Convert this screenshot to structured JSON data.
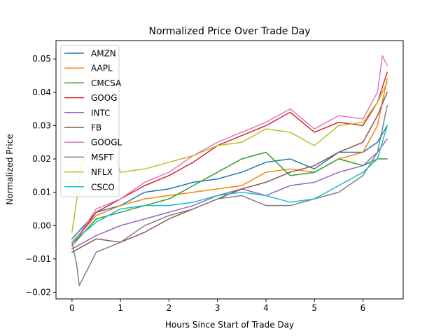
{
  "chart_data": {
    "type": "line",
    "title": "Normalized Price Over Trade Day",
    "xlabel": "Hours Since Start of Trade Day",
    "ylabel": "Normalized Price",
    "xlim": [
      -0.33,
      6.83
    ],
    "ylim": [
      -0.022,
      0.0555
    ],
    "xticks": [
      0,
      1,
      2,
      3,
      4,
      5,
      6
    ],
    "xtick_labels": [
      "0",
      "1",
      "2",
      "3",
      "4",
      "5",
      "6"
    ],
    "yticks": [
      -0.02,
      -0.01,
      0.0,
      0.01,
      0.02,
      0.03,
      0.04,
      0.05
    ],
    "ytick_labels": [
      "−0.02",
      "−0.01",
      "0.00",
      "0.01",
      "0.02",
      "0.03",
      "0.04",
      "0.05"
    ],
    "grid": false,
    "legend_position": "top-left",
    "series": [
      {
        "name": "AMZN",
        "color": "#1f77b4",
        "x": [
          0,
          0.5,
          1,
          1.5,
          2,
          2.5,
          3,
          3.5,
          4,
          4.5,
          5,
          5.5,
          6,
          6.3,
          6.5
        ],
        "y": [
          -0.004,
          0.004,
          0.006,
          0.01,
          0.011,
          0.013,
          0.014,
          0.016,
          0.019,
          0.02,
          0.017,
          0.022,
          0.022,
          0.025,
          0.03
        ]
      },
      {
        "name": "AAPL",
        "color": "#ff7f0e",
        "x": [
          0,
          0.5,
          1,
          1.5,
          2,
          2.5,
          3,
          3.5,
          4,
          4.5,
          5,
          5.5,
          6,
          6.3,
          6.5
        ],
        "y": [
          -0.005,
          0.003,
          0.006,
          0.008,
          0.009,
          0.01,
          0.011,
          0.012,
          0.016,
          0.017,
          0.016,
          0.02,
          0.022,
          0.03,
          0.044
        ]
      },
      {
        "name": "CMCSA",
        "color": "#2ca02c",
        "x": [
          0,
          0.5,
          1,
          1.5,
          2,
          2.5,
          3,
          3.5,
          4,
          4.5,
          5,
          5.5,
          6,
          6.3,
          6.5
        ],
        "y": [
          -0.006,
          0.002,
          0.004,
          0.006,
          0.008,
          0.012,
          0.016,
          0.02,
          0.022,
          0.015,
          0.016,
          0.02,
          0.018,
          0.02,
          0.02
        ]
      },
      {
        "name": "GOOG",
        "color": "#d62728",
        "x": [
          0,
          0.5,
          1,
          1.5,
          2,
          2.5,
          3,
          3.5,
          4,
          4.5,
          5,
          5.5,
          6,
          6.3,
          6.5
        ],
        "y": [
          -0.006,
          0.004,
          0.008,
          0.012,
          0.015,
          0.019,
          0.024,
          0.027,
          0.03,
          0.034,
          0.028,
          0.031,
          0.03,
          0.037,
          0.046
        ]
      },
      {
        "name": "INTC",
        "color": "#9467bd",
        "x": [
          0,
          0.5,
          1,
          1.5,
          2,
          2.5,
          3,
          3.5,
          4,
          4.5,
          5,
          5.5,
          6,
          6.3,
          6.5
        ],
        "y": [
          -0.007,
          -0.003,
          0.0,
          0.002,
          0.004,
          0.006,
          0.009,
          0.011,
          0.009,
          0.012,
          0.013,
          0.016,
          0.018,
          0.022,
          0.026
        ]
      },
      {
        "name": "FB",
        "color": "#8c564b",
        "x": [
          0,
          0.5,
          1,
          1.5,
          2,
          2.5,
          3,
          3.5,
          4,
          4.5,
          5,
          5.5,
          6,
          6.3,
          6.5
        ],
        "y": [
          -0.008,
          -0.004,
          -0.005,
          -0.002,
          0.002,
          0.005,
          0.008,
          0.011,
          0.013,
          0.016,
          0.018,
          0.022,
          0.025,
          0.033,
          0.04
        ]
      },
      {
        "name": "GOOGL",
        "color": "#e377c2",
        "x": [
          0,
          0.5,
          1,
          1.5,
          2,
          2.5,
          3,
          3.5,
          4,
          4.5,
          5,
          5.5,
          6,
          6.3,
          6.4,
          6.5
        ],
        "y": [
          -0.006,
          0.005,
          0.008,
          0.013,
          0.016,
          0.021,
          0.025,
          0.028,
          0.031,
          0.035,
          0.029,
          0.033,
          0.032,
          0.04,
          0.051,
          0.048
        ]
      },
      {
        "name": "MSFT",
        "color": "#7f7f7f",
        "x": [
          0,
          0.1,
          0.15,
          0.5,
          1,
          1.5,
          2,
          2.5,
          3,
          3.5,
          4,
          4.5,
          5,
          5.5,
          6,
          6.3,
          6.5
        ],
        "y": [
          -0.005,
          -0.012,
          -0.018,
          -0.008,
          -0.005,
          0.0,
          0.003,
          0.005,
          0.008,
          0.009,
          0.006,
          0.006,
          0.008,
          0.01,
          0.015,
          0.022,
          0.036
        ]
      },
      {
        "name": "NFLX",
        "color": "#bcbd22",
        "x": [
          0,
          0.2,
          0.4,
          0.6,
          0.8,
          1,
          1.5,
          2,
          2.5,
          3,
          3.5,
          4,
          4.5,
          5,
          5.5,
          6,
          6.3,
          6.5
        ],
        "y": [
          -0.002,
          0.018,
          0.025,
          0.027,
          0.024,
          0.016,
          0.017,
          0.019,
          0.021,
          0.024,
          0.025,
          0.029,
          0.028,
          0.024,
          0.03,
          0.031,
          0.037,
          0.043
        ]
      },
      {
        "name": "CSCO",
        "color": "#17becf",
        "x": [
          0,
          0.5,
          1,
          1.5,
          2,
          2.5,
          3,
          3.5,
          4,
          4.5,
          5,
          5.5,
          6,
          6.3,
          6.5
        ],
        "y": [
          -0.005,
          0.001,
          0.005,
          0.006,
          0.006,
          0.007,
          0.009,
          0.01,
          0.009,
          0.007,
          0.008,
          0.012,
          0.016,
          0.02,
          0.03
        ]
      }
    ]
  }
}
